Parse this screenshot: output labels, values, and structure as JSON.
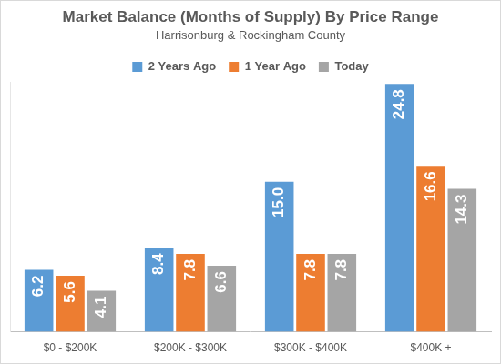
{
  "chart_data": {
    "type": "bar",
    "title": "Market Balance (Months of Supply) By Price Range",
    "subtitle": "Harrisonburg & Rockingham County",
    "categories": [
      "$0 - $200K",
      "$200K - $300K",
      "$300K - $400K",
      "$400K +"
    ],
    "series": [
      {
        "name": "2 Years Ago",
        "color": "#5b9bd5",
        "values": [
          6.2,
          8.4,
          15.0,
          24.8
        ],
        "value_labels": [
          "6.2",
          "8.4",
          "15.0",
          "24.8"
        ]
      },
      {
        "name": "1 Year Ago",
        "color": "#ed7d31",
        "values": [
          5.6,
          7.8,
          7.8,
          16.6
        ],
        "value_labels": [
          "5.6",
          "7.8",
          "7.8",
          "16.6"
        ]
      },
      {
        "name": "Today",
        "color": "#a5a5a5",
        "values": [
          4.1,
          6.6,
          7.8,
          14.3
        ],
        "value_labels": [
          "4.1",
          "6.6",
          "7.8",
          "14.3"
        ]
      }
    ],
    "ylim": [
      0,
      25
    ],
    "grid": false,
    "legend": "top",
    "data_labels": true,
    "tick_labels": "x"
  }
}
